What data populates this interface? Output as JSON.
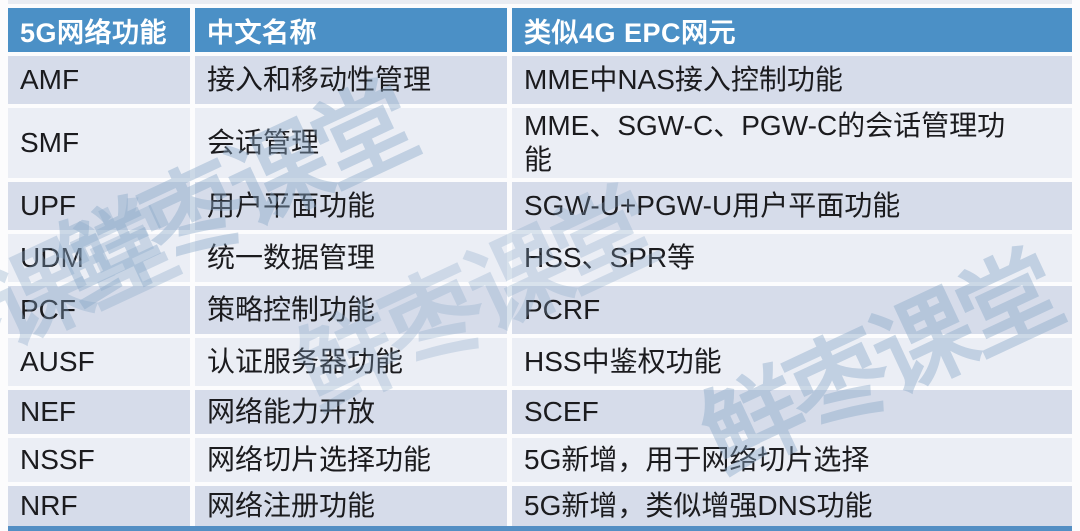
{
  "chart_data": {
    "type": "table",
    "title": "",
    "columns": [
      {
        "label": "5G网络功能"
      },
      {
        "label": "中文名称"
      },
      {
        "label": "类似4G EPC网元"
      }
    ],
    "rows": [
      {
        "function": "AMF",
        "chinese_name": "接入和移动性管理",
        "epc_equivalent": "MME中NAS接入控制功能"
      },
      {
        "function": "SMF",
        "chinese_name": "会话管理",
        "epc_equivalent": "MME、SGW-C、PGW-C的会话管理功能"
      },
      {
        "function": "UPF",
        "chinese_name": "用户平面功能",
        "epc_equivalent": "SGW-U+PGW-U用户平面功能"
      },
      {
        "function": "UDM",
        "chinese_name": "统一数据管理",
        "epc_equivalent": "HSS、SPR等"
      },
      {
        "function": "PCF",
        "chinese_name": "策略控制功能",
        "epc_equivalent": "PCRF"
      },
      {
        "function": "AUSF",
        "chinese_name": "认证服务器功能",
        "epc_equivalent": "HSS中鉴权功能"
      },
      {
        "function": "NEF",
        "chinese_name": "网络能力开放",
        "epc_equivalent": "SCEF"
      },
      {
        "function": "NSSF",
        "chinese_name": "网络切片选择功能",
        "epc_equivalent": "5G新增，用于网络切片选择"
      },
      {
        "function": "NRF",
        "chinese_name": "网络注册功能",
        "epc_equivalent": "5G新增，类似增强DNS功能"
      }
    ],
    "layout": {
      "header_row": true,
      "banded_rows": true,
      "next_table_header_cut_off_at_bottom": true
    }
  },
  "watermark": {
    "text": "鲜枣课堂"
  },
  "colors": {
    "header_bg": "#4b90c6",
    "header_text": "#ffffff",
    "row_dark": "#d6dcea",
    "row_light": "#ebeef5",
    "body_text": "#1b1b1e",
    "watermark": "#89a8c8",
    "strip": "#548fc4"
  }
}
